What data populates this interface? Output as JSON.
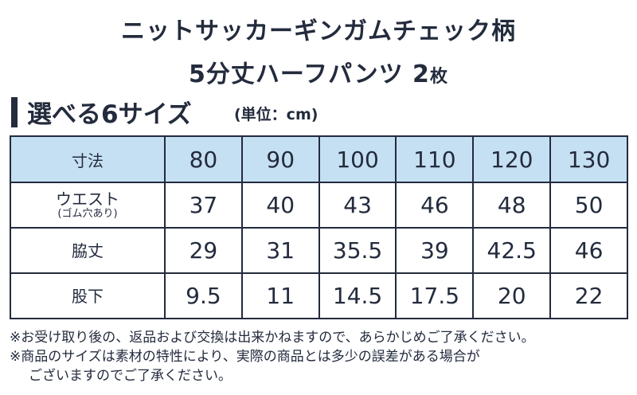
{
  "title": {
    "line1": "ニットサッカーギンガムチェック柄",
    "line2_main": "5分丈ハーフパンツ 2",
    "line2_small": "枚"
  },
  "section": {
    "heading": "選べる6サイズ",
    "unit": "(単位：cm)"
  },
  "table": {
    "header_label": "寸法",
    "sizes": [
      "80",
      "90",
      "100",
      "110",
      "120",
      "130"
    ],
    "rows": [
      {
        "label": "ウエスト",
        "sublabel": "(ゴム穴あり)",
        "values": [
          "37",
          "40",
          "43",
          "46",
          "48",
          "50"
        ]
      },
      {
        "label": "脇丈",
        "sublabel": "",
        "values": [
          "29",
          "31",
          "35.5",
          "39",
          "42.5",
          "46"
        ]
      },
      {
        "label": "股下",
        "sublabel": "",
        "values": [
          "9.5",
          "11",
          "14.5",
          "17.5",
          "20",
          "22"
        ]
      }
    ]
  },
  "notes": {
    "note1": "※お受け取り後の、返品および交換は出来かねますので、あらかじめご了承ください。",
    "note2": "※商品のサイズは素材の特性により、実際の商品とは多少の誤差がある場合が",
    "note2_cont": "ございますのでご了承ください。"
  },
  "colors": {
    "text": "#232b3d",
    "header_fill": "#c6e0f3",
    "border": "#232b3d"
  }
}
